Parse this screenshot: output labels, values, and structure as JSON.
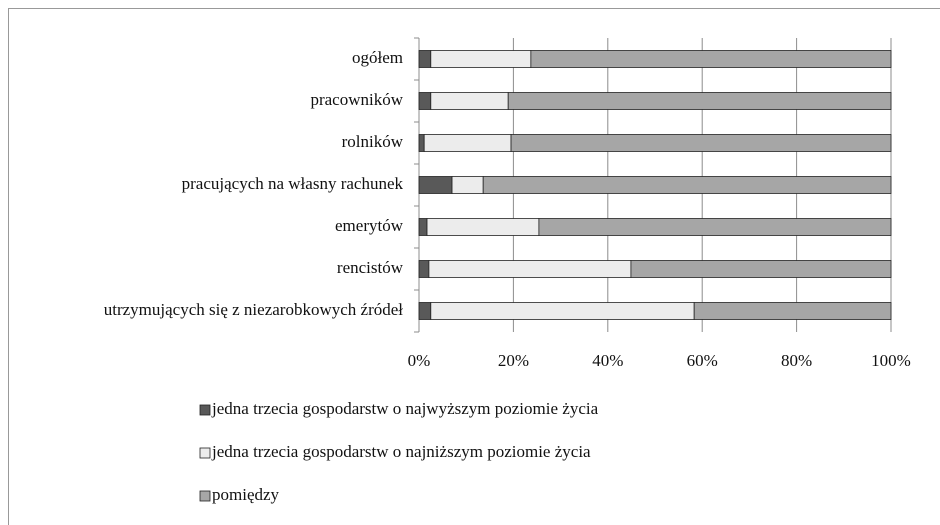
{
  "chart_data": {
    "type": "stacked_bar_horizontal",
    "categories": [
      "ogółem",
      "pracowników",
      "rolników",
      "pracujących na własny rachunek",
      "emerytów",
      "rencistów",
      "utrzymujących się z niezarobkowych źródeł"
    ],
    "series": [
      {
        "name": "jedna trzecia gospodarstw o najwyższym poziomie życia",
        "color": "#595959",
        "values": [
          2.5,
          2.5,
          1.1,
          7.0,
          1.7,
          2.1,
          2.5
        ]
      },
      {
        "name": "jedna trzecia gospodarstw o najniższym poziomie życia",
        "color": "#ececec",
        "values": [
          21.2,
          16.4,
          18.4,
          6.6,
          23.7,
          42.8,
          55.8
        ]
      },
      {
        "name": "pomiędzy",
        "color": "#a6a6a6",
        "values": [
          76.3,
          81.1,
          80.5,
          86.4,
          74.6,
          55.1,
          41.7
        ]
      }
    ],
    "xlim": [
      0,
      100
    ],
    "xticks": [
      {
        "value": 0,
        "label": "0%"
      },
      {
        "value": 20,
        "label": "20%"
      },
      {
        "value": 40,
        "label": "40%"
      },
      {
        "value": 60,
        "label": "60%"
      },
      {
        "value": 80,
        "label": "80%"
      },
      {
        "value": 100,
        "label": "100%"
      }
    ],
    "grid": true
  }
}
